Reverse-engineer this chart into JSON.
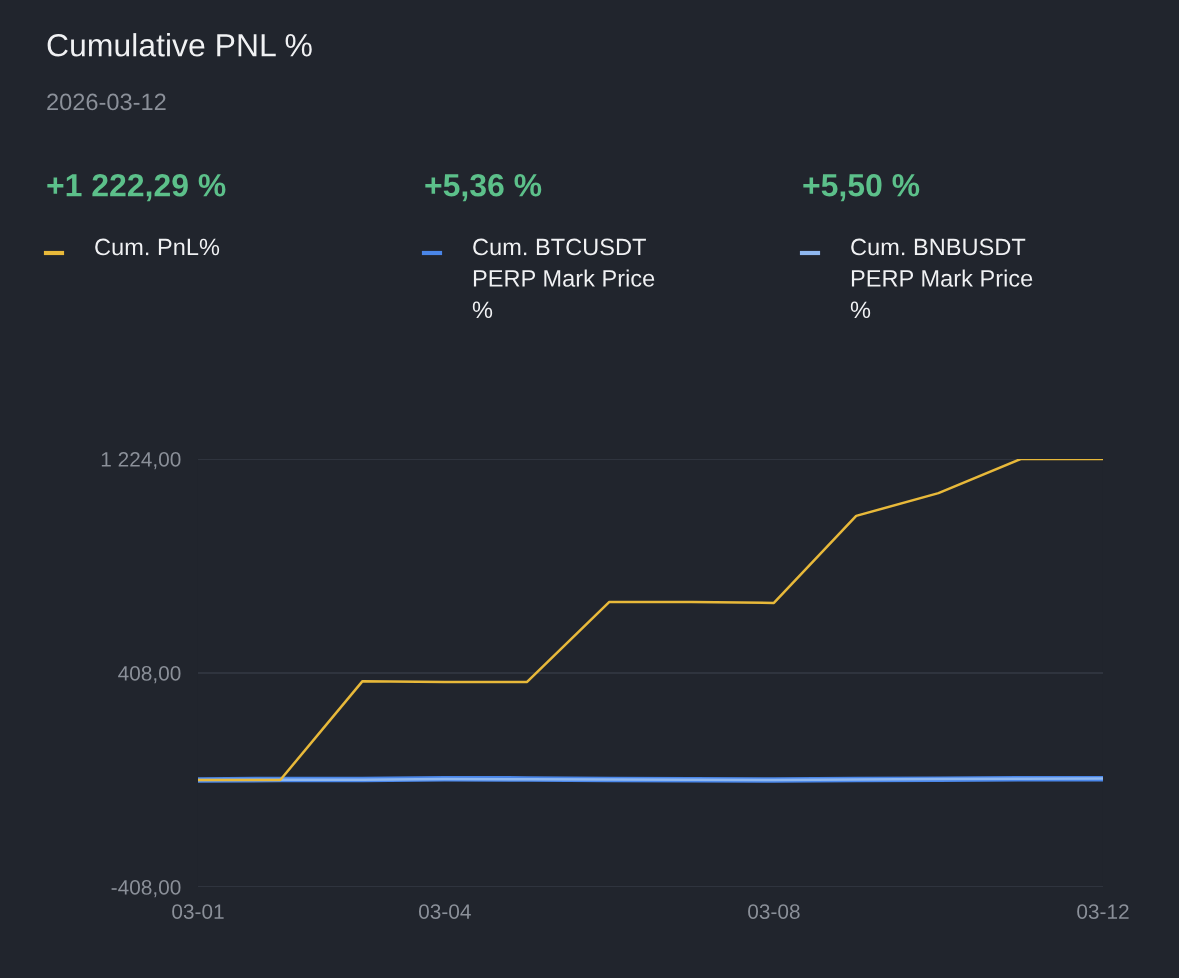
{
  "chart_data": {
    "type": "line",
    "title": "Cumulative PNL %",
    "subtitle": "2026-03-12",
    "annotations": [
      "+1 222,29 %",
      "+5,36 %",
      "+5,50 %"
    ],
    "categories": [
      "03-01",
      null,
      null,
      "03-04",
      null,
      null,
      null,
      "03-08",
      null,
      null,
      null,
      "03-12"
    ],
    "series": [
      {
        "name": "Cum. PnL%",
        "color": "#e8b93a",
        "values": [
          0,
          0,
          377,
          374,
          374,
          679,
          679,
          675,
          1007,
          1094,
          1224,
          1224
        ]
      },
      {
        "name": "Cum. BTCUSDT\nPERP Mark Price\n%",
        "color": "#4a86e8",
        "values": [
          0,
          2,
          2,
          5,
          4,
          2,
          1,
          0,
          2,
          3,
          5,
          5
        ]
      },
      {
        "name": "Cum. BNBUSDT\nPERP Mark Price\n%",
        "color": "#8fb8f0",
        "values": [
          0,
          1,
          1,
          4,
          3,
          2,
          1,
          0,
          2,
          4,
          5,
          6
        ]
      }
    ],
    "ylim": [
      -408,
      1224
    ],
    "yticks": [
      {
        "value": -408,
        "label": "-408,00"
      },
      {
        "value": 408,
        "label": "408,00"
      },
      {
        "value": 1224,
        "label": "1 224,00"
      }
    ],
    "grid": "y",
    "legend": "top",
    "marker": "none",
    "line_style": "solid"
  }
}
